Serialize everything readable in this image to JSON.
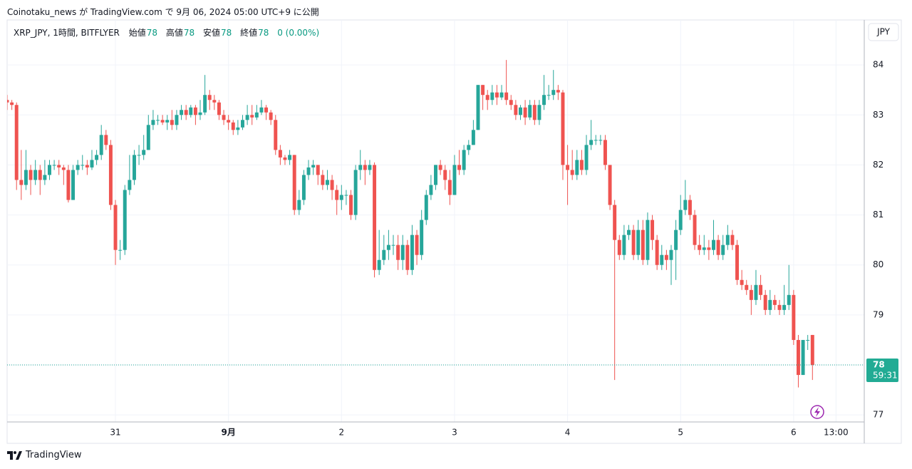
{
  "header": {
    "text": "Coinotaku_news が TradingView.com で 9月 06, 2024 05:00 UTC+9 に公開"
  },
  "legend": {
    "symbol": "XRP_JPY, 1時間, BITFLYER",
    "open_label": "始値",
    "open": 78,
    "high_label": "高値",
    "high": 78,
    "low_label": "安値",
    "low": 78,
    "close_label": "終値",
    "close": 78,
    "change": "0 (0.00%)"
  },
  "footer": {
    "brand": "TradingView"
  },
  "chart_data": {
    "type": "candlestick",
    "currency": "JPY",
    "countdown": "59:31",
    "up_color": "#26a69a",
    "down_color": "#ef5350",
    "grid": true,
    "ylim": [
      76.86,
      84.9
    ],
    "yticks": [
      77,
      78,
      79,
      80,
      81,
      82,
      83,
      84
    ],
    "xlim": [
      0,
      182
    ],
    "xticks": [
      {
        "value": 23,
        "label": "31"
      },
      {
        "value": 47,
        "label": "9月"
      },
      {
        "value": 71,
        "label": "2"
      },
      {
        "value": 95,
        "label": "3"
      },
      {
        "value": 119,
        "label": "4"
      },
      {
        "value": 143,
        "label": "5"
      },
      {
        "value": 167,
        "label": "6"
      },
      {
        "value": 176,
        "label": "13:00"
      }
    ],
    "open": [
      83.3,
      83.25,
      83.2,
      81.7,
      81.6,
      81.9,
      81.7,
      81.9,
      81.7,
      81.8,
      82.0,
      82.0,
      81.95,
      81.9,
      81.3,
      81.9,
      82.0,
      82.0,
      81.95,
      82.1,
      82.2,
      82.6,
      82.4,
      81.2,
      80.3,
      80.3,
      81.5,
      81.7,
      82.2,
      82.2,
      82.3,
      82.8,
      82.9,
      82.9,
      82.85,
      82.9,
      82.8,
      83.0,
      83.1,
      83.0,
      83.15,
      83.0,
      83.05,
      83.4,
      83.3,
      83.25,
      83.0,
      82.9,
      82.85,
      82.7,
      82.75,
      82.9,
      83.0,
      82.95,
      83.05,
      83.15,
      83.05,
      82.9,
      82.3,
      82.15,
      82.1,
      82.2,
      81.1,
      81.3,
      81.8,
      81.95,
      82.0,
      81.8,
      81.6,
      81.7,
      81.5,
      81.3,
      81.4,
      81.4,
      81.0,
      81.9,
      82.0,
      81.9,
      82.0,
      79.9,
      80.1,
      80.3,
      80.4,
      80.4,
      80.1,
      80.4,
      79.9,
      80.6,
      80.2,
      80.9,
      81.4,
      81.6,
      82.0,
      81.9,
      81.7,
      81.4,
      82.0,
      81.9,
      82.3,
      82.4,
      82.7,
      83.6,
      83.4,
      83.3,
      83.45,
      83.35,
      83.45,
      83.3,
      83.2,
      83.0,
      83.15,
      82.95,
      83.2,
      82.9,
      83.2,
      83.4,
      83.4,
      83.5,
      83.45,
      82.0,
      81.9,
      81.8,
      82.1,
      81.9,
      82.4,
      82.5,
      82.5,
      82.5,
      82.0,
      81.2,
      80.5,
      80.2,
      80.6,
      80.7,
      80.2,
      80.7,
      80.1,
      80.9,
      80.5,
      80.0,
      80.2,
      80.1,
      80.3,
      80.7,
      81.1,
      81.3,
      81.0,
      80.4,
      80.3,
      80.35,
      80.3,
      80.5,
      80.2,
      80.4,
      80.6,
      80.4,
      79.7,
      79.6,
      79.5,
      79.3,
      79.6,
      79.4,
      79.1,
      79.3,
      79.2,
      79.1,
      79.2,
      79.4,
      78.5,
      77.8,
      78.5,
      78.6
    ],
    "high": [
      83.4,
      83.3,
      83.25,
      82.3,
      82.3,
      82.0,
      82.1,
      82.0,
      82.1,
      82.1,
      82.1,
      82.1,
      82.0,
      82.0,
      82.0,
      82.1,
      82.2,
      82.1,
      82.3,
      82.3,
      82.8,
      82.7,
      82.5,
      81.3,
      80.5,
      81.6,
      82.2,
      82.3,
      82.4,
      82.6,
      83.0,
      83.1,
      83.0,
      83.0,
      83.0,
      83.1,
      83.1,
      83.2,
      83.2,
      83.2,
      83.2,
      83.3,
      83.8,
      83.5,
      83.4,
      83.3,
      83.1,
      83.0,
      82.9,
      82.9,
      83.0,
      83.2,
      83.2,
      83.2,
      83.3,
      83.2,
      83.1,
      83.0,
      82.4,
      82.2,
      82.3,
      82.2,
      81.5,
      81.9,
      82.1,
      82.1,
      82.0,
      81.9,
      81.9,
      81.8,
      81.6,
      81.6,
      81.5,
      81.5,
      82.0,
      82.3,
      82.1,
      82.1,
      82.05,
      80.7,
      80.6,
      80.7,
      80.6,
      80.6,
      80.6,
      80.5,
      80.8,
      80.7,
      81.1,
      81.5,
      81.8,
      82.0,
      82.1,
      82.0,
      81.9,
      82.2,
      82.3,
      82.4,
      82.5,
      82.9,
      83.6,
      83.6,
      83.5,
      83.6,
      83.6,
      83.6,
      84.1,
      83.4,
      83.3,
      83.2,
      83.3,
      83.3,
      83.3,
      83.3,
      83.8,
      83.6,
      83.9,
      83.6,
      83.5,
      82.4,
      82.3,
      82.3,
      82.3,
      82.6,
      82.9,
      82.6,
      82.6,
      82.6,
      82.0,
      81.3,
      80.6,
      80.8,
      80.8,
      80.8,
      80.9,
      80.9,
      81.05,
      81.0,
      80.6,
      80.4,
      80.3,
      80.4,
      80.9,
      81.4,
      81.7,
      81.4,
      81.1,
      80.6,
      80.6,
      80.5,
      80.9,
      80.6,
      80.6,
      80.8,
      80.7,
      80.5,
      79.9,
      79.7,
      79.6,
      79.9,
      79.8,
      79.5,
      79.5,
      79.4,
      79.3,
      79.6,
      80.0,
      79.5,
      78.6,
      78.5,
      78.6,
      78.6
    ],
    "low": [
      83.1,
      83.1,
      81.5,
      81.3,
      81.5,
      81.4,
      81.6,
      81.4,
      81.6,
      81.7,
      81.9,
      81.8,
      81.6,
      81.25,
      81.3,
      81.8,
      81.9,
      81.8,
      81.9,
      82.0,
      82.1,
      82.3,
      81.1,
      80.0,
      80.1,
      80.2,
      81.4,
      81.6,
      82.0,
      82.1,
      82.3,
      82.7,
      82.8,
      82.8,
      82.7,
      82.7,
      82.7,
      82.9,
      82.9,
      82.95,
      82.8,
      82.9,
      83.0,
      83.1,
      83.1,
      82.9,
      82.8,
      82.7,
      82.6,
      82.6,
      82.7,
      82.8,
      82.8,
      82.9,
      83.0,
      82.9,
      82.8,
      82.2,
      82.0,
      82.0,
      82.0,
      81.0,
      81.0,
      81.2,
      81.7,
      81.8,
      81.6,
      81.5,
      81.5,
      81.3,
      81.0,
      81.1,
      81.2,
      80.9,
      80.9,
      81.7,
      81.6,
      81.8,
      79.75,
      79.8,
      80.0,
      80.1,
      80.2,
      79.9,
      79.9,
      79.8,
      79.8,
      80.0,
      80.1,
      80.8,
      81.3,
      81.5,
      81.8,
      81.5,
      81.2,
      81.4,
      81.8,
      81.8,
      82.2,
      82.4,
      82.7,
      83.1,
      83.1,
      83.2,
      83.2,
      83.3,
      83.2,
      83.1,
      82.9,
      82.9,
      82.8,
      82.9,
      82.8,
      82.8,
      83.1,
      83.3,
      83.3,
      83.3,
      81.7,
      81.2,
      81.7,
      81.7,
      81.8,
      81.8,
      82.3,
      82.4,
      82.4,
      81.9,
      81.1,
      77.7,
      80.1,
      80.1,
      80.5,
      80.1,
      80.1,
      80.0,
      80.0,
      80.3,
      79.9,
      79.9,
      79.9,
      79.6,
      79.7,
      80.6,
      81.0,
      80.9,
      80.3,
      80.2,
      80.2,
      80.1,
      80.2,
      80.1,
      80.1,
      80.3,
      80.3,
      79.6,
      79.5,
      79.4,
      79.0,
      79.2,
      79.3,
      79.0,
      79.0,
      79.1,
      79.0,
      79.0,
      79.1,
      78.4,
      77.55,
      77.8,
      78.3,
      77.7
    ],
    "close": [
      83.25,
      83.2,
      81.7,
      81.6,
      81.9,
      81.7,
      81.9,
      81.7,
      81.8,
      82.0,
      82.0,
      81.95,
      81.9,
      81.3,
      81.9,
      82.0,
      82.0,
      81.95,
      82.1,
      82.2,
      82.6,
      82.4,
      81.2,
      80.3,
      80.3,
      81.5,
      81.7,
      82.2,
      82.2,
      82.3,
      82.8,
      82.9,
      82.9,
      82.85,
      82.9,
      82.8,
      83.0,
      83.1,
      83.0,
      83.15,
      83.0,
      83.05,
      83.4,
      83.3,
      83.25,
      83.0,
      82.9,
      82.85,
      82.7,
      82.75,
      82.9,
      83.0,
      82.95,
      83.05,
      83.15,
      83.05,
      82.9,
      82.3,
      82.15,
      82.1,
      82.2,
      81.1,
      81.3,
      81.8,
      81.95,
      82.0,
      81.8,
      81.6,
      81.7,
      81.5,
      81.3,
      81.4,
      81.4,
      81.0,
      81.9,
      82.0,
      81.9,
      82.0,
      79.9,
      80.1,
      80.3,
      80.4,
      80.4,
      80.1,
      80.4,
      79.9,
      80.6,
      80.2,
      80.9,
      81.4,
      81.6,
      82.0,
      81.9,
      81.7,
      81.4,
      82.0,
      81.9,
      82.3,
      82.4,
      82.7,
      83.6,
      83.4,
      83.3,
      83.45,
      83.35,
      83.45,
      83.3,
      83.2,
      83.0,
      83.15,
      82.95,
      83.2,
      82.9,
      83.2,
      83.4,
      83.4,
      83.5,
      83.45,
      82.0,
      81.9,
      81.8,
      82.1,
      81.9,
      82.4,
      82.5,
      82.5,
      82.5,
      82.0,
      81.2,
      80.5,
      80.2,
      80.6,
      80.7,
      80.2,
      80.7,
      80.1,
      80.9,
      80.5,
      80.0,
      80.2,
      80.1,
      80.3,
      80.7,
      81.1,
      81.3,
      81.0,
      80.4,
      80.3,
      80.35,
      80.3,
      80.5,
      80.2,
      80.4,
      80.6,
      80.4,
      79.7,
      79.6,
      79.5,
      79.3,
      79.6,
      79.4,
      79.1,
      79.3,
      79.2,
      79.1,
      79.2,
      79.4,
      78.5,
      77.8,
      78.5,
      78.5,
      78.0
    ]
  }
}
